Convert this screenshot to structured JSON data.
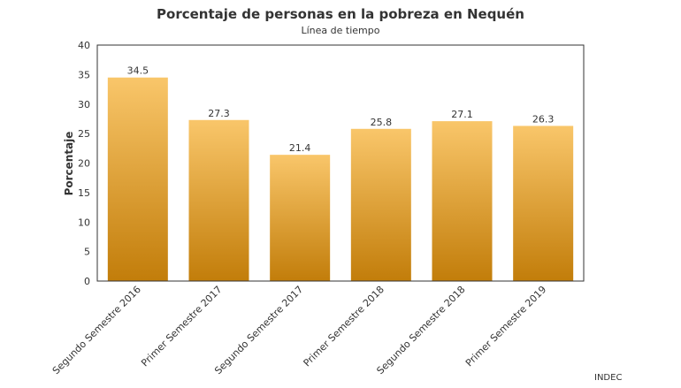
{
  "chart_data": {
    "type": "bar",
    "title": "Porcentaje de personas en la pobreza en Nequén",
    "subtitle": "Línea de tiempo",
    "xlabel": "",
    "ylabel": "Porcentaje",
    "ylim": [
      0,
      40
    ],
    "yticks": [
      0,
      5,
      10,
      15,
      20,
      25,
      30,
      35,
      40
    ],
    "categories": [
      "Segundo Semestre 2016",
      "Primer Semestre 2017",
      "Segundo Semestre 2017",
      "Primer Semestre 2018",
      "Segundo Semestre 2018",
      "Primer Semestre 2019"
    ],
    "values": [
      34.5,
      27.3,
      21.4,
      25.8,
      27.1,
      26.3
    ],
    "data_labels": [
      "34.5",
      "27.3",
      "21.4",
      "25.8",
      "27.1",
      "26.3"
    ],
    "grid": false,
    "legend": "none",
    "source": "INDEC",
    "colors": {
      "bar_top": "#f9c66a",
      "bar_bottom": "#c27d0a"
    }
  }
}
